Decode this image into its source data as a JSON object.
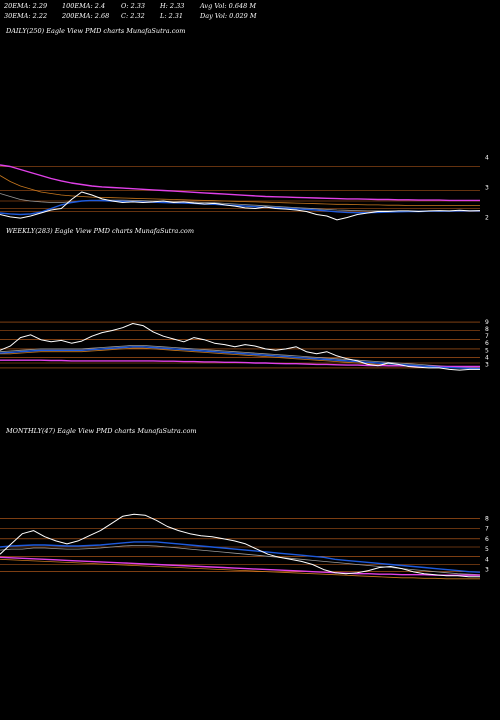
{
  "stats": {
    "ema20": "20EMA: 2.29",
    "ema100": "100EMA: 2.4",
    "open": "O: 2.33",
    "high": "H: 2.33",
    "avg_vol": "Avg Vol: 0.648  M",
    "ema30": "30EMA: 2.22",
    "ema200": "200EMA: 2.68",
    "close": "C: 2.32",
    "low": "L: 2.31",
    "day_vol": "Day Vol: 0.029 M"
  },
  "colors": {
    "background": "#000000",
    "price": "#ffffff",
    "ema_short": "#1e5adc",
    "ema_long": "#e040e8",
    "ma_orange": "#c8781e",
    "ma_gray": "#9a9a9a",
    "level_line": "#c8641e"
  },
  "chart_data": [
    {
      "type": "line",
      "title": "DAILY(250) Eagle  View  PMD charts MunafaSutra.com",
      "y_ticks": [
        "4",
        "3",
        "2"
      ],
      "tick_values": [
        4,
        3,
        2
      ],
      "ylim": [
        1.75,
        4.25
      ],
      "level_lines": [
        3.7,
        2.9,
        2.55,
        2.3,
        2.2
      ],
      "series": [
        {
          "key": "price",
          "values": [
            2.1,
            2.02,
            1.98,
            2.05,
            2.15,
            2.25,
            2.3,
            2.6,
            2.85,
            2.75,
            2.62,
            2.55,
            2.5,
            2.52,
            2.5,
            2.52,
            2.55,
            2.5,
            2.52,
            2.48,
            2.45,
            2.47,
            2.42,
            2.38,
            2.32,
            2.3,
            2.35,
            2.3,
            2.28,
            2.25,
            2.2,
            2.1,
            2.05,
            1.92,
            2.0,
            2.1,
            2.15,
            2.2,
            2.2,
            2.22,
            2.22,
            2.2,
            2.22,
            2.23,
            2.22,
            2.24,
            2.22,
            2.23
          ]
        },
        {
          "key": "ema_short",
          "values": [
            2.15,
            2.12,
            2.1,
            2.12,
            2.18,
            2.3,
            2.42,
            2.5,
            2.55,
            2.57,
            2.56,
            2.55,
            2.54,
            2.53,
            2.52,
            2.51,
            2.5,
            2.49,
            2.48,
            2.47,
            2.45,
            2.44,
            2.42,
            2.4,
            2.38,
            2.36,
            2.34,
            2.33,
            2.31,
            2.29,
            2.27,
            2.25,
            2.22,
            2.19,
            2.17,
            2.16,
            2.16,
            2.17,
            2.18,
            2.19,
            2.2,
            2.2,
            2.21,
            2.21,
            2.21,
            2.22,
            2.22,
            2.22
          ]
        },
        {
          "key": "ema_long",
          "values": [
            3.75,
            3.7,
            3.6,
            3.5,
            3.4,
            3.3,
            3.22,
            3.15,
            3.1,
            3.05,
            3.02,
            3.0,
            2.98,
            2.96,
            2.94,
            2.92,
            2.9,
            2.88,
            2.86,
            2.84,
            2.82,
            2.8,
            2.78,
            2.76,
            2.74,
            2.72,
            2.7,
            2.69,
            2.68,
            2.67,
            2.66,
            2.65,
            2.64,
            2.63,
            2.62,
            2.62,
            2.61,
            2.6,
            2.6,
            2.59,
            2.59,
            2.58,
            2.58,
            2.58,
            2.57,
            2.57,
            2.57,
            2.57
          ]
        },
        {
          "key": "ma_orange",
          "values": [
            3.4,
            3.2,
            3.05,
            2.95,
            2.85,
            2.8,
            2.75,
            2.72,
            2.7,
            2.68,
            2.67,
            2.66,
            2.65,
            2.64,
            2.63,
            2.62,
            2.61,
            2.6,
            2.59,
            2.58,
            2.57,
            2.56,
            2.55,
            2.54,
            2.53,
            2.52,
            2.51,
            2.5,
            2.49,
            2.48,
            2.47,
            2.46,
            2.45,
            2.44,
            2.44,
            2.43,
            2.42,
            2.42,
            2.41,
            2.41,
            2.4,
            2.4,
            2.4,
            2.4,
            2.4,
            2.4,
            2.4,
            2.4
          ]
        },
        {
          "key": "ma_gray",
          "values": [
            2.8,
            2.7,
            2.6,
            2.55,
            2.52,
            2.5,
            2.5,
            2.52,
            2.55,
            2.57,
            2.58,
            2.58,
            2.58,
            2.57,
            2.56,
            2.55,
            2.54,
            2.53,
            2.52,
            2.51,
            2.5,
            2.49,
            2.47,
            2.45,
            2.43,
            2.41,
            2.39,
            2.37,
            2.35,
            2.33,
            2.31,
            2.29,
            2.27,
            2.25,
            2.24,
            2.23,
            2.22,
            2.22,
            2.22,
            2.22,
            2.22,
            2.22,
            2.22,
            2.22,
            2.22,
            2.22,
            2.22,
            2.22
          ]
        }
      ]
    },
    {
      "type": "line",
      "title": "WEEKLY(283) Eagle  View  PMD charts MunafaSutra.com",
      "y_ticks": [
        "9",
        "8",
        "7",
        "6",
        "5",
        "4",
        "3"
      ],
      "tick_values": [
        9,
        8,
        7,
        6,
        5,
        4,
        3
      ],
      "ylim": [
        1.5,
        10
      ],
      "level_lines": [
        9,
        7.8,
        6.5,
        5.2,
        4,
        3.2,
        2.5
      ],
      "series": [
        {
          "key": "price",
          "values": [
            5.0,
            5.6,
            6.8,
            7.2,
            6.5,
            6.2,
            6.4,
            6.0,
            6.3,
            7.0,
            7.5,
            7.8,
            8.2,
            8.8,
            8.5,
            7.6,
            7.0,
            6.6,
            6.2,
            6.8,
            6.5,
            6.0,
            5.8,
            5.5,
            5.8,
            5.6,
            5.2,
            5.0,
            5.2,
            5.5,
            4.8,
            4.5,
            4.8,
            4.2,
            3.8,
            3.5,
            3.0,
            2.8,
            3.2,
            3.0,
            2.7,
            2.6,
            2.5,
            2.5,
            2.3,
            2.2,
            2.3,
            2.3
          ]
        },
        {
          "key": "ema_short",
          "values": [
            4.6,
            4.7,
            4.8,
            4.9,
            5.0,
            5.0,
            5.0,
            5.0,
            5.0,
            5.1,
            5.2,
            5.3,
            5.4,
            5.5,
            5.5,
            5.4,
            5.3,
            5.2,
            5.1,
            5.0,
            4.9,
            4.8,
            4.7,
            4.6,
            4.5,
            4.4,
            4.3,
            4.2,
            4.1,
            4.0,
            3.9,
            3.8,
            3.7,
            3.6,
            3.5,
            3.4,
            3.3,
            3.2,
            3.1,
            3.0,
            2.9,
            2.8,
            2.7,
            2.6,
            2.55,
            2.5,
            2.45,
            2.42
          ]
        },
        {
          "key": "ema_long",
          "values": [
            3.6,
            3.6,
            3.6,
            3.6,
            3.6,
            3.55,
            3.55,
            3.5,
            3.5,
            3.5,
            3.5,
            3.5,
            3.5,
            3.5,
            3.5,
            3.5,
            3.45,
            3.45,
            3.4,
            3.4,
            3.35,
            3.35,
            3.3,
            3.3,
            3.25,
            3.2,
            3.2,
            3.15,
            3.1,
            3.1,
            3.05,
            3.0,
            3.0,
            2.95,
            2.9,
            2.9,
            2.85,
            2.85,
            2.8,
            2.8,
            2.8,
            2.75,
            2.75,
            2.7,
            2.7,
            2.7,
            2.7,
            2.7
          ]
        },
        {
          "key": "ma_orange",
          "values": [
            4.5,
            4.5,
            4.6,
            4.7,
            4.8,
            4.8,
            4.8,
            4.8,
            4.8,
            4.9,
            5.0,
            5.1,
            5.2,
            5.3,
            5.3,
            5.2,
            5.1,
            5.0,
            4.9,
            4.8,
            4.7,
            4.6,
            4.5,
            4.4,
            4.3,
            4.2,
            4.1,
            4.0,
            3.9,
            3.8,
            3.7,
            3.6,
            3.5,
            3.4,
            3.3,
            3.2,
            3.1,
            3.0,
            2.9,
            2.85,
            2.8,
            2.75,
            2.7,
            2.65,
            2.6,
            2.58,
            2.56,
            2.55
          ]
        },
        {
          "key": "ma_gray",
          "values": [
            4.8,
            4.9,
            5.0,
            5.1,
            5.2,
            5.2,
            5.2,
            5.2,
            5.2,
            5.3,
            5.4,
            5.5,
            5.6,
            5.7,
            5.7,
            5.6,
            5.5,
            5.4,
            5.3,
            5.2,
            5.1,
            5.0,
            4.9,
            4.8,
            4.7,
            4.6,
            4.5,
            4.4,
            4.3,
            4.2,
            4.1,
            4.0,
            3.9,
            3.8,
            3.7,
            3.6,
            3.5,
            3.4,
            3.3,
            3.2,
            3.1,
            3.0,
            2.9,
            2.8,
            2.7,
            2.6,
            2.55,
            2.5
          ]
        }
      ]
    },
    {
      "type": "line",
      "title": "MONTHLY(47) Eagle  View  PMD charts MunafaSutra.com",
      "y_ticks": [
        "8",
        "7",
        "6",
        "5",
        "4",
        "3"
      ],
      "tick_values": [
        8,
        7,
        6,
        5,
        4,
        3
      ],
      "ylim": [
        1.5,
        9
      ],
      "level_lines": [
        8,
        7,
        6,
        5.2,
        4.3,
        3.5,
        2.8
      ],
      "series": [
        {
          "key": "price",
          "values": [
            4.5,
            5.5,
            6.5,
            6.8,
            6.2,
            5.8,
            5.5,
            5.8,
            6.3,
            6.8,
            7.5,
            8.2,
            8.4,
            8.3,
            7.8,
            7.2,
            6.8,
            6.5,
            6.3,
            6.2,
            6.0,
            5.8,
            5.5,
            5.0,
            4.5,
            4.2,
            4.0,
            3.8,
            3.5,
            3.0,
            2.7,
            2.6,
            2.7,
            2.9,
            3.2,
            3.3,
            3.1,
            2.8,
            2.6,
            2.5,
            2.4,
            2.4,
            2.3,
            2.3
          ]
        },
        {
          "key": "ema_short",
          "values": [
            5.2,
            5.3,
            5.35,
            5.4,
            5.4,
            5.35,
            5.3,
            5.3,
            5.35,
            5.4,
            5.5,
            5.6,
            5.7,
            5.7,
            5.7,
            5.6,
            5.5,
            5.4,
            5.3,
            5.2,
            5.1,
            5.0,
            4.9,
            4.8,
            4.7,
            4.6,
            4.5,
            4.4,
            4.3,
            4.2,
            4.0,
            3.9,
            3.8,
            3.7,
            3.6,
            3.5,
            3.4,
            3.3,
            3.2,
            3.1,
            3.0,
            2.9,
            2.8,
            2.75
          ]
        },
        {
          "key": "ema_long",
          "values": [
            4.2,
            4.15,
            4.1,
            4.05,
            4.0,
            3.95,
            3.9,
            3.85,
            3.8,
            3.75,
            3.7,
            3.65,
            3.6,
            3.55,
            3.5,
            3.45,
            3.4,
            3.35,
            3.3,
            3.25,
            3.2,
            3.15,
            3.1,
            3.05,
            3.0,
            2.95,
            2.9,
            2.85,
            2.8,
            2.75,
            2.7,
            2.65,
            2.6,
            2.6,
            2.55,
            2.55,
            2.5,
            2.5,
            2.5,
            2.45,
            2.45,
            2.45,
            2.45,
            2.45
          ]
        },
        {
          "key": "ma_orange",
          "values": [
            4.0,
            3.95,
            3.9,
            3.85,
            3.8,
            3.75,
            3.7,
            3.65,
            3.6,
            3.55,
            3.5,
            3.45,
            3.4,
            3.35,
            3.3,
            3.25,
            3.2,
            3.15,
            3.1,
            3.05,
            3.0,
            2.95,
            2.9,
            2.85,
            2.8,
            2.75,
            2.7,
            2.65,
            2.6,
            2.55,
            2.5,
            2.45,
            2.4,
            2.35,
            2.3,
            2.25,
            2.2,
            2.2,
            2.15,
            2.15,
            2.1,
            2.1,
            2.1,
            2.1
          ]
        },
        {
          "key": "ma_gray",
          "values": [
            4.9,
            5.0,
            5.0,
            5.1,
            5.1,
            5.05,
            5.0,
            5.0,
            5.05,
            5.1,
            5.2,
            5.3,
            5.35,
            5.35,
            5.3,
            5.2,
            5.1,
            5.0,
            4.9,
            4.8,
            4.7,
            4.6,
            4.5,
            4.4,
            4.3,
            4.2,
            4.1,
            4.0,
            3.9,
            3.8,
            3.7,
            3.6,
            3.5,
            3.4,
            3.3,
            3.2,
            3.1,
            3.0,
            2.9,
            2.8,
            2.7,
            2.6,
            2.55,
            2.5
          ]
        }
      ]
    }
  ]
}
